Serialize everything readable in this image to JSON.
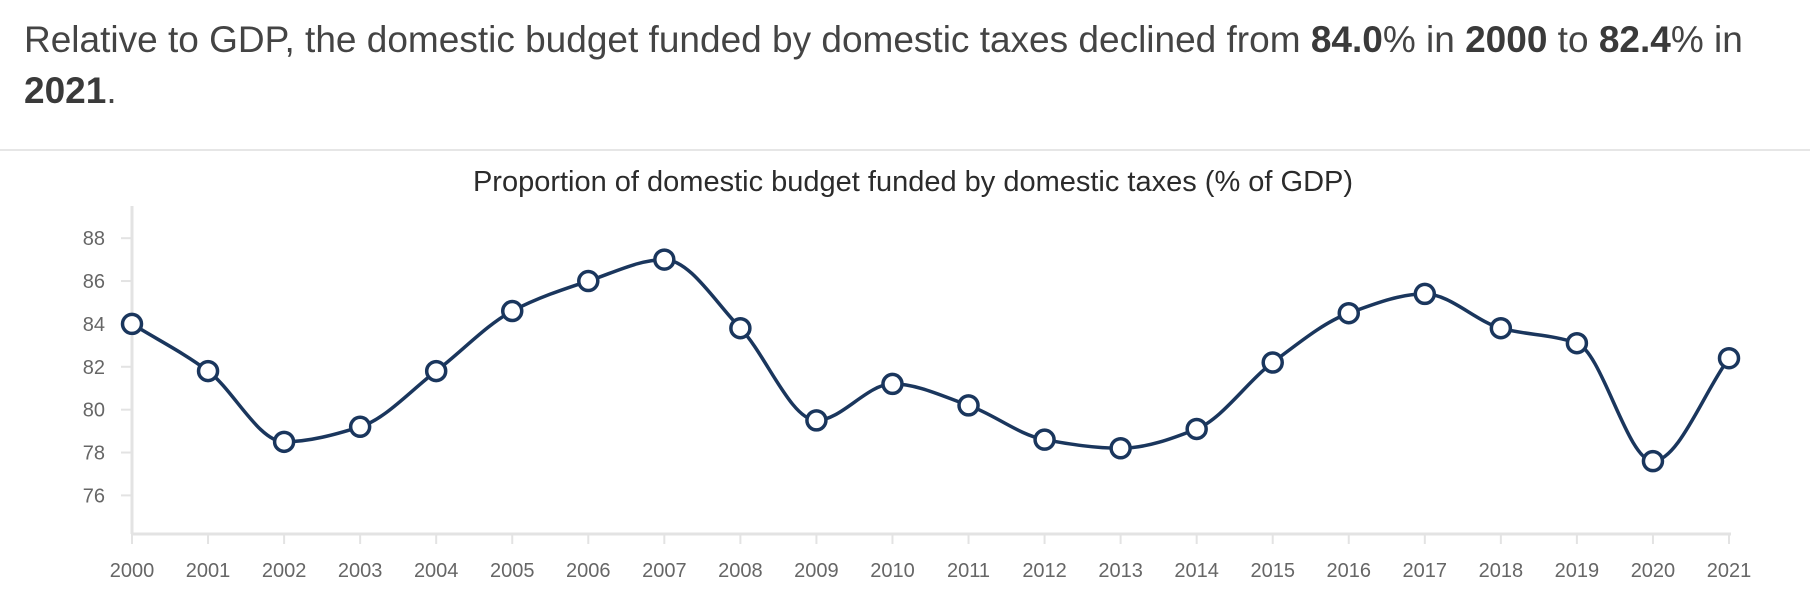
{
  "headline": {
    "prefix": "Relative to GDP, the domestic budget funded by domestic taxes declined from ",
    "start_value": "84.0",
    "mid1": "% in ",
    "start_year": "2000",
    "mid2": " to ",
    "end_value": "82.4",
    "mid3": "% in ",
    "end_year": "2021",
    "suffix": "."
  },
  "chart_data": {
    "type": "line",
    "title": "Proportion of domestic budget funded by domestic taxes (% of GDP)",
    "xlabel": "",
    "ylabel": "",
    "categories": [
      "2000",
      "2001",
      "2002",
      "2003",
      "2004",
      "2005",
      "2006",
      "2007",
      "2008",
      "2009",
      "2010",
      "2011",
      "2012",
      "2013",
      "2014",
      "2015",
      "2016",
      "2017",
      "2018",
      "2019",
      "2020",
      "2021"
    ],
    "series": [
      {
        "values": [
          84.0,
          81.8,
          78.5,
          79.2,
          81.8,
          84.6,
          86.0,
          87.0,
          83.8,
          79.5,
          81.2,
          80.2,
          78.6,
          78.2,
          79.1,
          82.2,
          84.5,
          85.4,
          83.8,
          83.1,
          77.6,
          82.4
        ]
      }
    ],
    "yticks": [
      76,
      78,
      80,
      82,
      84,
      86,
      88
    ],
    "ylim": [
      74.2,
      89.5
    ],
    "grid": false,
    "legend": "none",
    "colors": {
      "line": "#1a365d",
      "marker_fill": "#ffffff",
      "axis": "#e3e3e3"
    }
  }
}
